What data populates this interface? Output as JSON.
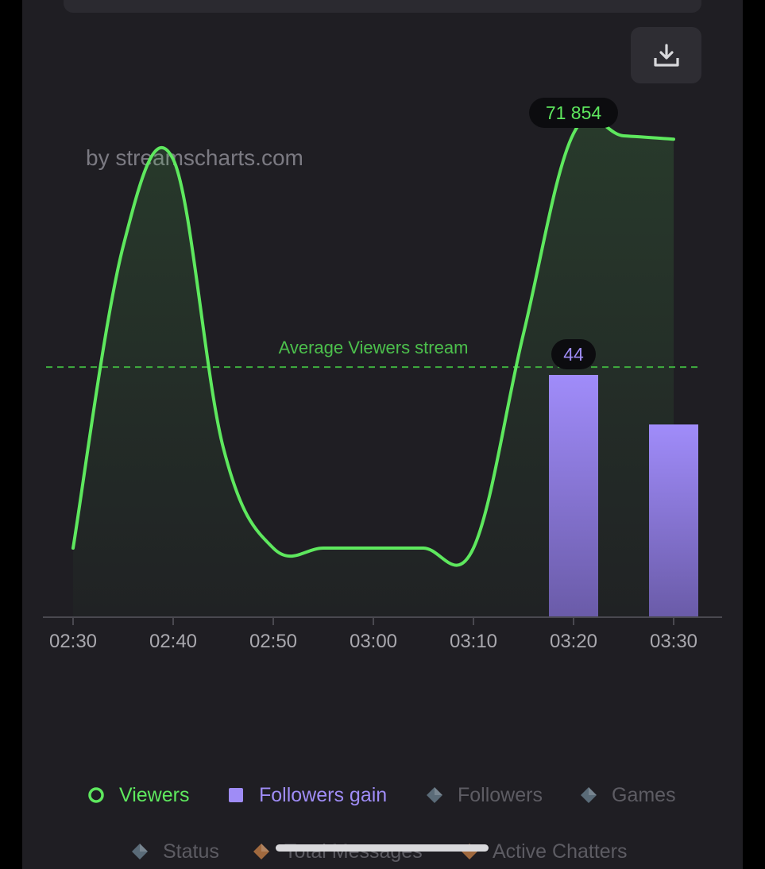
{
  "watermark": "by streamscharts.com",
  "download_icon": "download-icon",
  "chart_data": {
    "type": "line",
    "x": [
      "02:30",
      "02:35",
      "02:40",
      "02:45",
      "02:50",
      "02:55",
      "03:00",
      "03:05",
      "03:10",
      "03:15",
      "03:20",
      "03:25",
      "03:30"
    ],
    "xticks": [
      "02:30",
      "02:40",
      "02:50",
      "03:00",
      "03:10",
      "03:20",
      "03:30"
    ],
    "series": [
      {
        "name": "Viewers",
        "type": "line",
        "color": "#5ee85e",
        "values": [
          10000,
          55000,
          68000,
          25000,
          10000,
          10000,
          10000,
          10000,
          10000,
          42000,
          71854,
          71500,
          71000
        ]
      },
      {
        "name": "Followers gain",
        "type": "bar",
        "color": "#9f8cf6",
        "x": [
          "03:20",
          "03:30"
        ],
        "values": [
          44,
          35
        ]
      }
    ],
    "average_line": {
      "label": "Average Viewers stream",
      "value": 37000,
      "color": "#3fae3f"
    },
    "tooltips": [
      {
        "series": "Viewers",
        "x": "03:20",
        "text": "71 854"
      },
      {
        "series": "Followers gain",
        "x": "03:20",
        "text": "44"
      }
    ],
    "grid": false
  },
  "legend": [
    {
      "label": "Viewers",
      "icon": "circle-outline-icon",
      "color": "#5ee85e",
      "active": true
    },
    {
      "label": "Followers gain",
      "icon": "square-icon",
      "color": "#9f8cf6",
      "active": true
    },
    {
      "label": "Followers",
      "icon": "diamond-icon",
      "color": "#5a6b78",
      "active": false
    },
    {
      "label": "Games",
      "icon": "diamond-icon",
      "color": "#5a6b78",
      "active": false
    },
    {
      "label": "Status",
      "icon": "diamond-icon",
      "color": "#5a6b78",
      "active": false
    },
    {
      "label": "Total Messages",
      "icon": "diamond-icon",
      "color": "#a0693e",
      "active": false
    },
    {
      "label": "Active Chatters",
      "icon": "diamond-icon",
      "color": "#a0693e",
      "active": false
    }
  ]
}
